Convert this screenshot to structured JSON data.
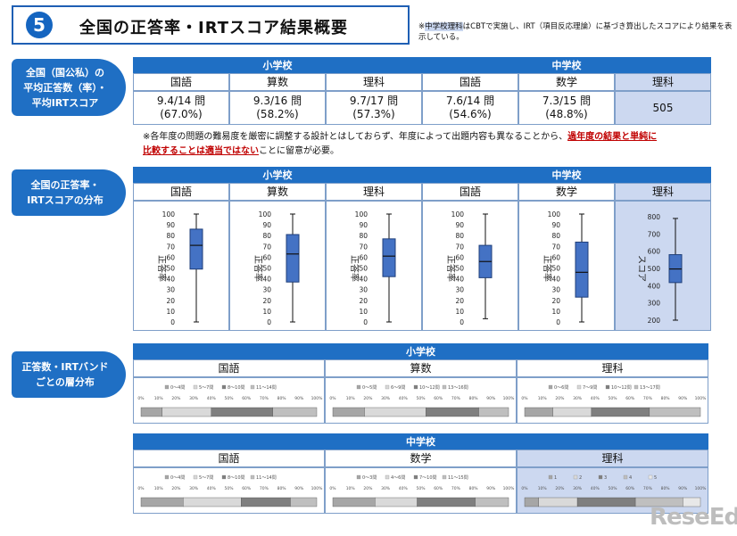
{
  "header": {
    "number": "5",
    "title": "全国の正答率・IRTスコア結果概要",
    "note_prefix": "※",
    "note_highlight": "中学校理科",
    "note_rest": "はCBTで実施し、IRT（項目反応理論）に基づき算出したスコアにより結果を表示している。"
  },
  "side_labels": {
    "avg": "全国（国公私）の\n平均正答数（率）・\n平均IRTスコア",
    "dist": "全国の正答率・\nIRTスコアの分布",
    "band": "正答数・IRTバンド\nごとの層分布"
  },
  "schools": {
    "elementary": "小学校",
    "junior": "中学校"
  },
  "subjects": {
    "kokugo": "国語",
    "sansu": "算数",
    "rika": "理科",
    "sugaku": "数学"
  },
  "averages": {
    "e_kokugo": [
      "9.4/14 問",
      "(67.0%)"
    ],
    "e_sansu": [
      "9.3/16 問",
      "(58.2%)"
    ],
    "e_rika": [
      "9.7/17 問",
      "(57.3%)"
    ],
    "j_kokugo": [
      "7.6/14 問",
      "(54.6%)"
    ],
    "j_sugaku": [
      "7.3/15 問",
      "(48.8%)"
    ],
    "j_rika": "505"
  },
  "caution": {
    "part1": "※各年度の問題の難易度を厳密に調整する設計とはしておらず、年度によって出題内容も異なることから、",
    "part2": "過年度の結果と単純に",
    "part3": "比較することは適当ではない",
    "part4": "ことに留意が必要。"
  },
  "axis": {
    "pct_label": "正答率",
    "irt_label": "スコア",
    "pct_ticks": [
      "0",
      "10",
      "20",
      "30",
      "40",
      "50",
      "60",
      "70",
      "80",
      "90",
      "100"
    ],
    "irt_ticks": [
      "200",
      "300",
      "400",
      "500",
      "600",
      "700",
      "800"
    ]
  },
  "boxplots": [
    {
      "key": "e_kokugo",
      "min": 0,
      "q1": 49,
      "median": 71,
      "q3": 86,
      "max": 100
    },
    {
      "key": "e_sansu",
      "min": 0,
      "q1": 37,
      "median": 63,
      "q3": 81,
      "max": 100
    },
    {
      "key": "e_rika",
      "min": 0,
      "q1": 42,
      "median": 61,
      "q3": 77,
      "max": 100
    },
    {
      "key": "j_kokugo",
      "min": 3,
      "q1": 41,
      "median": 56,
      "q3": 71,
      "max": 100
    },
    {
      "key": "j_sugaku",
      "min": 0,
      "q1": 23,
      "median": 46,
      "q3": 74,
      "max": 100
    },
    {
      "key": "j_rika",
      "min": 200,
      "q1": 418,
      "median": 497,
      "q3": 580,
      "max": 790
    }
  ],
  "band_ticks": [
    "0%",
    "10%",
    "20%",
    "30%",
    "40%",
    "50%",
    "60%",
    "70%",
    "80%",
    "90%",
    "100%"
  ],
  "band_charts": [
    {
      "key": "e_kokugo",
      "legend": [
        "0～4問",
        "5～7問",
        "8～10問",
        "11～14問"
      ],
      "fractions": [
        0.12,
        0.28,
        0.35,
        0.25
      ]
    },
    {
      "key": "e_sansu",
      "legend": [
        "0～5問",
        "6～9問",
        "10～12問",
        "13～16問"
      ],
      "fractions": [
        0.18,
        0.35,
        0.3,
        0.17
      ]
    },
    {
      "key": "e_rika",
      "legend": [
        "0～6問",
        "7～9問",
        "10～12問",
        "13～17問"
      ],
      "fractions": [
        0.16,
        0.22,
        0.33,
        0.29
      ]
    },
    {
      "key": "j_kokugo",
      "legend": [
        "0～4問",
        "5～7問",
        "8～10問",
        "11～14問"
      ],
      "fractions": [
        0.24,
        0.33,
        0.28,
        0.15
      ]
    },
    {
      "key": "j_sugaku",
      "legend": [
        "0～3問",
        "4～6問",
        "7～10問",
        "11～15問"
      ],
      "fractions": [
        0.24,
        0.24,
        0.33,
        0.19
      ]
    },
    {
      "key": "j_rika",
      "legend": [
        "1",
        "2",
        "3",
        "4",
        "5"
      ],
      "fractions": [
        0.08,
        0.22,
        0.33,
        0.27,
        0.1
      ]
    }
  ],
  "colors": {
    "accent": "#1f6fc4",
    "box": "#4472c4",
    "band": [
      "#a6a6a6",
      "#d9d9d9",
      "#7f7f7f",
      "#bfbfbf",
      "#e8e8e8"
    ]
  },
  "logo": "ReseEd"
}
